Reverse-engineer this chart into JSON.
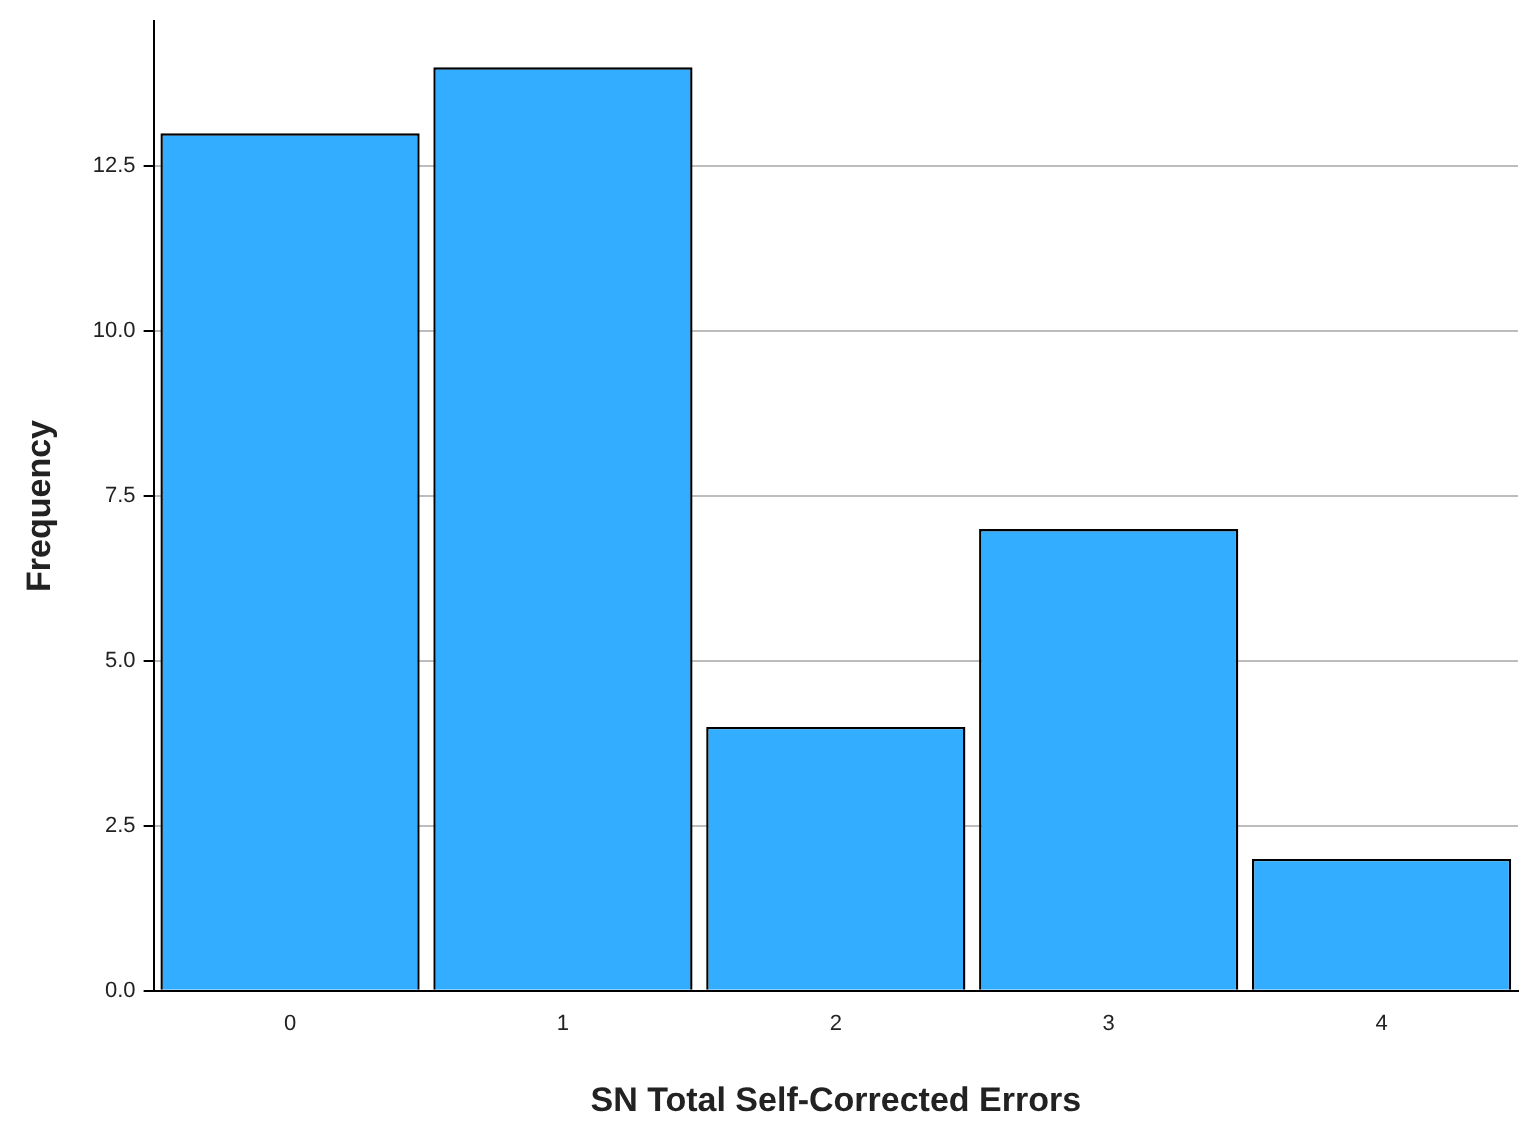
{
  "chart_data": {
    "type": "bar",
    "xlabel": "SN Total Self-Corrected Errors",
    "ylabel": "Frequency",
    "categories": [
      "0",
      "1",
      "2",
      "3",
      "4"
    ],
    "values": [
      13,
      14,
      4,
      7,
      2
    ],
    "color": "#33adff",
    "ylim": [
      0,
      14.7
    ],
    "yticks": [
      {
        "value": 0,
        "label": "0.0"
      },
      {
        "value": 2.5,
        "label": "2.5"
      },
      {
        "value": 5,
        "label": "5.0"
      },
      {
        "value": 7.5,
        "label": "7.5"
      },
      {
        "value": 10,
        "label": "10.0"
      },
      {
        "value": 12.5,
        "label": "12.5"
      }
    ],
    "grid": "y",
    "legend": false
  }
}
